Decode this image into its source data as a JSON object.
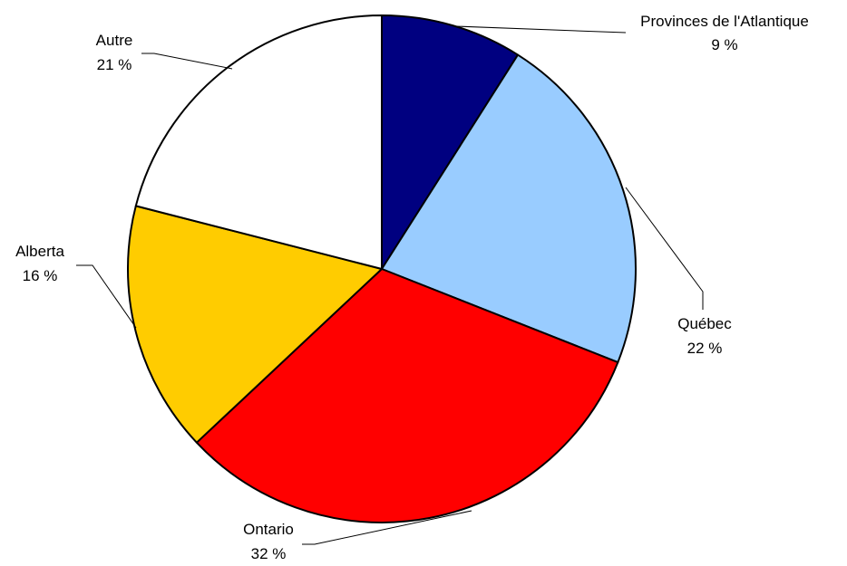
{
  "chart_data": {
    "type": "pie",
    "start_angle_deg": 0,
    "direction": "clockwise",
    "slices": [
      {
        "label": "Provinces de l'Atlantique",
        "value": 9,
        "value_text": "9 %",
        "color": "#000080"
      },
      {
        "label": "Québec",
        "value": 22,
        "value_text": "22 %",
        "color": "#99ccff"
      },
      {
        "label": "Ontario",
        "value": 32,
        "value_text": "32 %",
        "color": "#ff0000"
      },
      {
        "label": "Alberta",
        "value": 16,
        "value_text": "16 %",
        "color": "#ffcc00"
      },
      {
        "label": "Autre",
        "value": 21,
        "value_text": "21 %",
        "color": "#ffffff"
      }
    ]
  }
}
